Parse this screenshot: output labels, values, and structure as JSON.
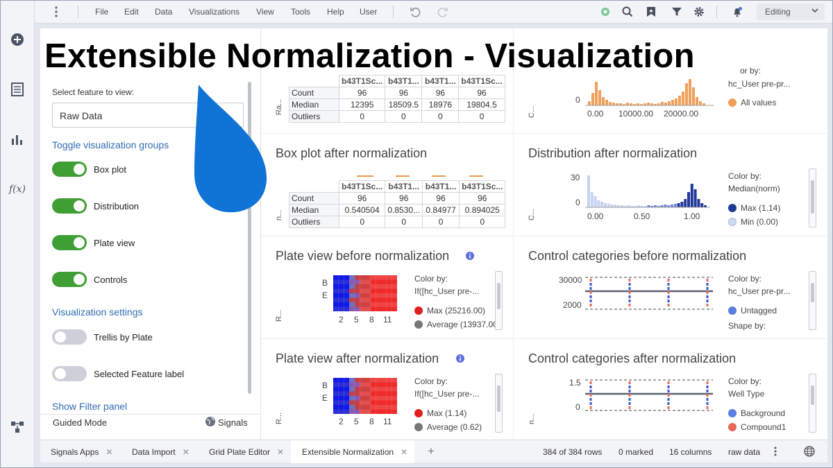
{
  "menubar": {
    "items": [
      "File",
      "Edit",
      "Data",
      "Visualizations",
      "View",
      "Tools",
      "Help",
      "User"
    ],
    "mode": "Editing"
  },
  "overlay": {
    "title": "Extensible Normalization - Visualization"
  },
  "panel": {
    "feature_label": "Select feature to view:",
    "feature_value": "Raw Data",
    "groups_header": "Toggle visualization groups",
    "toggles": [
      {
        "label": "Box plot",
        "on": true
      },
      {
        "label": "Distribution",
        "on": true
      },
      {
        "label": "Plate view",
        "on": true
      },
      {
        "label": "Controls",
        "on": true
      }
    ],
    "settings_header": "Visualization settings",
    "settings": [
      {
        "label": "Trellis by Plate",
        "on": false
      },
      {
        "label": "Selected Feature label",
        "on": false
      }
    ],
    "filter_link": "Show Filter panel",
    "guided_mode": "Guided Mode",
    "signals": "Signals"
  },
  "boxplot_before": {
    "axis_label": "Ra...",
    "columns": [
      "b43T1Sc...",
      "b43T1...",
      "b43T1...",
      "b43T1Sc..."
    ],
    "rows": [
      {
        "name": "Count",
        "values": [
          "96",
          "96",
          "96",
          "96"
        ]
      },
      {
        "name": "Median",
        "values": [
          "12395",
          "18509.5",
          "18976",
          "19804.5"
        ]
      },
      {
        "name": "Outliers",
        "values": [
          "0",
          "0",
          "0",
          "0"
        ]
      }
    ]
  },
  "boxplot_after": {
    "title": "Box plot after normalization",
    "axis_label": "n...",
    "columns": [
      "b43T1Sc...",
      "b43T1...",
      "b43T1...",
      "b43T1Sc..."
    ],
    "rows": [
      {
        "name": "Count",
        "values": [
          "96",
          "96",
          "96",
          "96"
        ]
      },
      {
        "name": "Median",
        "values": [
          "0.540504",
          "0.8530...",
          "0.84977",
          "0.894025"
        ]
      },
      {
        "name": "Outliers",
        "values": [
          "0",
          "0",
          "0",
          "0"
        ]
      }
    ]
  },
  "dist_before": {
    "axis_label": "C...",
    "y_ticks": [
      "0"
    ],
    "x_ticks": [
      "0.00",
      "10000.00",
      "20000.00"
    ],
    "color_by_label": "or by:",
    "color_by_value": "hc_User pre-pr...",
    "legend": [
      {
        "label": "All values",
        "color": "#f0a05a"
      }
    ]
  },
  "dist_after": {
    "title": "Distribution after normalization",
    "axis_label": "C...",
    "y_ticks": [
      "30",
      "0"
    ],
    "x_ticks": [
      "0.00",
      "0.50",
      "1.00"
    ],
    "color_by_label": "Color by:",
    "color_by_value": "Median(norm)",
    "legend": [
      {
        "label": "Max (1.14)",
        "color": "#1f3a93"
      },
      {
        "label": "Min (0.00)",
        "color": "#cfdaf5"
      }
    ]
  },
  "plate_before": {
    "title": "Plate view before normalization",
    "axis_label": "R...",
    "row_labels": [
      "B",
      "E"
    ],
    "col_labels": [
      "2",
      "5",
      "8",
      "11"
    ],
    "color_by_label": "Color by:",
    "color_by_value": "If([hc_User pre-...",
    "legend": [
      {
        "label": "Max (25216.00)",
        "color": "#e02020"
      },
      {
        "label": "Average (13937.00",
        "color": "#777777"
      }
    ]
  },
  "plate_after": {
    "title": "Plate view after normalization",
    "axis_label": "R...",
    "row_labels": [
      "B",
      "E"
    ],
    "col_labels": [
      "2",
      "5",
      "8",
      "11"
    ],
    "color_by_label": "Color by:",
    "color_by_value": "If([hc_User pre-...",
    "legend": [
      {
        "label": "Max (1.14)",
        "color": "#e02020"
      },
      {
        "label": "Average (0.62)",
        "color": "#777777"
      }
    ]
  },
  "controls_before": {
    "title": "Control categories before normalization",
    "axis_label": "R...",
    "y_ticks": [
      "30000",
      "2000"
    ],
    "color_by_label": "Color by:",
    "color_by_value": "hc_User pre-pr...",
    "legend": [
      {
        "label": "Untagged",
        "color": "#5b7fe0"
      }
    ],
    "shape_by_label": "Shape by:"
  },
  "controls_after": {
    "title": "Control categories after normalization",
    "axis_label": "n...",
    "y_ticks": [
      "1.5",
      "0"
    ],
    "color_by_label": "Color by:",
    "color_by_value": "Well Type",
    "legend": [
      {
        "label": "Background",
        "color": "#5b7fe0"
      },
      {
        "label": "Compound1",
        "color": "#e8685a"
      }
    ]
  },
  "statusbar": {
    "tabs": [
      "Signals Apps",
      "Data Import",
      "Grid Plate Editor",
      "Extensible Normalization"
    ],
    "add": "+",
    "rows": "384 of 384 rows",
    "marked": "0 marked",
    "columns": "16 columns",
    "table": "raw data"
  },
  "colors": {
    "accent_link": "#2e6db3",
    "toggle_on": "#3f9e34",
    "droplet": "#1073d6"
  }
}
